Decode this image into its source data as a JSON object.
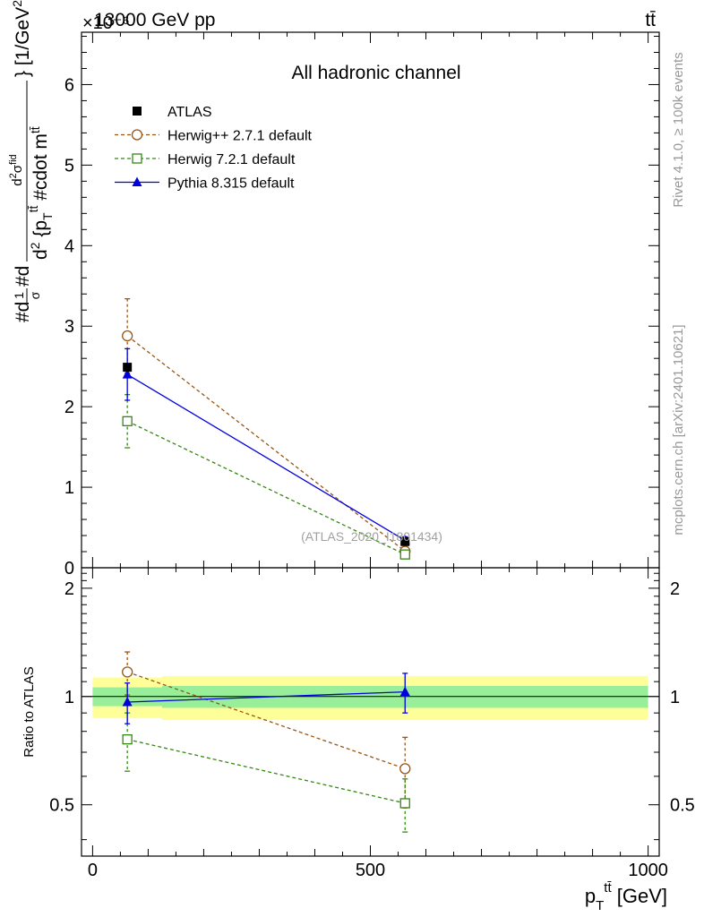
{
  "chart_data": [
    {
      "type": "line",
      "panel": "main",
      "title": "All hadronic channel",
      "top_left_label": "13000 GeV pp",
      "top_right_label": "tt̄",
      "y_multiplier": "×10⁻⁶",
      "ylabel": "#d\\frac{1}{σ}#d\\frac{d²σ^{fid}}{d²{p_T^{tt̄} #cdot m^{tt̄}}} [1/GeV²]",
      "ylabel_parts": {
        "p1": "#d",
        "p1_num": "1",
        "p1_den": "σ",
        "p2": "#d",
        "frac_num": "d",
        "frac_num_sup": "2",
        "frac_num_main": "σ",
        "frac_num_sup2": "fid",
        "frac_den": "d",
        "frac_den_sup": "2",
        "frac_den_main": " {p",
        "frac_den_sub": "T",
        "frac_den_sup3": "tt̄",
        "frac_den_tail": " #cdot m",
        "frac_den_sup4": "tt̄",
        "unit": "} [1/GeV",
        "unit_sup": "2",
        "unit_end": "]"
      },
      "xlabel": "p_T^{tt̄} [GeV]",
      "xlabel_parts": {
        "main": "p",
        "sub": "T",
        "sup": "tt̄",
        "unit": " [GeV]"
      },
      "xlim": [
        -20,
        1020
      ],
      "ylim": [
        0,
        6.65
      ],
      "x_ticks": [
        0,
        500,
        1000
      ],
      "x_tick_labels": [
        "0",
        "500",
        "1000"
      ],
      "y_ticks": [
        0,
        1,
        2,
        3,
        4,
        5,
        6
      ],
      "y_tick_labels": [
        "0",
        "1",
        "2",
        "3",
        "4",
        "5",
        "6"
      ],
      "x": [
        62.5,
        562.5
      ],
      "series": [
        {
          "name": "ATLAS",
          "values": [
            2.49,
            0.325
          ],
          "err": [
            0.0,
            0.015
          ],
          "color": "#000000",
          "marker": "filled-square",
          "style": "none"
        },
        {
          "name": "Herwig++ 2.7.1 default",
          "values": [
            2.88,
            0.205
          ],
          "err": [
            0.46,
            0.035
          ],
          "color": "#995511",
          "marker": "open-circle",
          "style": "dashed"
        },
        {
          "name": "Herwig 7.2.1 default",
          "values": [
            1.82,
            0.165
          ],
          "err": [
            0.33,
            0.03
          ],
          "color": "#338811",
          "marker": "open-square",
          "style": "dashed"
        },
        {
          "name": "Pythia 8.315 default",
          "values": [
            2.4,
            0.34
          ],
          "err": [
            0.32,
            0.045
          ],
          "color": "#0000dd",
          "marker": "filled-triangle",
          "style": "solid"
        }
      ],
      "annotation": "(ATLAS_2020_I1801434)",
      "legend_position": "top-left",
      "right_labels": {
        "rivet": "Rivet 4.1.0, ≥ 100k events",
        "mcplots": "mcplots.cern.ch [arXiv:2401.10621]"
      }
    },
    {
      "type": "line",
      "panel": "ratio",
      "ylabel": "Ratio to ATLAS",
      "xlim": [
        -20,
        1020
      ],
      "ylim": [
        0.36,
        2.28
      ],
      "y_ticks": [
        0.5,
        1,
        2
      ],
      "y_tick_labels": [
        "0.5",
        "1",
        "2"
      ],
      "x": [
        62.5,
        562.5
      ],
      "bands": [
        {
          "name": "uncertainty-outer",
          "color": "#ffff99",
          "segments": [
            {
              "x": [
                0,
                125
              ],
              "y": [
                0.87,
                1.13
              ]
            },
            {
              "x": [
                125,
                1000
              ],
              "y": [
                0.86,
                1.14
              ]
            }
          ]
        },
        {
          "name": "uncertainty-inner",
          "color": "#99ee99",
          "segments": [
            {
              "x": [
                0,
                125
              ],
              "y": [
                0.94,
                1.06
              ]
            },
            {
              "x": [
                125,
                1000
              ],
              "y": [
                0.93,
                1.07
              ]
            }
          ]
        }
      ],
      "series": [
        {
          "name": "Herwig++ 2.7.1 default",
          "values": [
            1.17,
            0.63
          ],
          "err": [
            0.16,
            0.14
          ],
          "color": "#995511",
          "marker": "open-circle",
          "style": "dashed"
        },
        {
          "name": "Herwig 7.2.1 default",
          "values": [
            0.76,
            0.505
          ],
          "err": [
            0.14,
            0.085
          ],
          "color": "#338811",
          "marker": "open-square",
          "style": "dashed"
        },
        {
          "name": "Pythia 8.315 default",
          "values": [
            0.965,
            1.03
          ],
          "err": [
            0.125,
            0.13
          ],
          "color": "#0000dd",
          "marker": "filled-triangle",
          "style": "solid"
        }
      ]
    }
  ]
}
